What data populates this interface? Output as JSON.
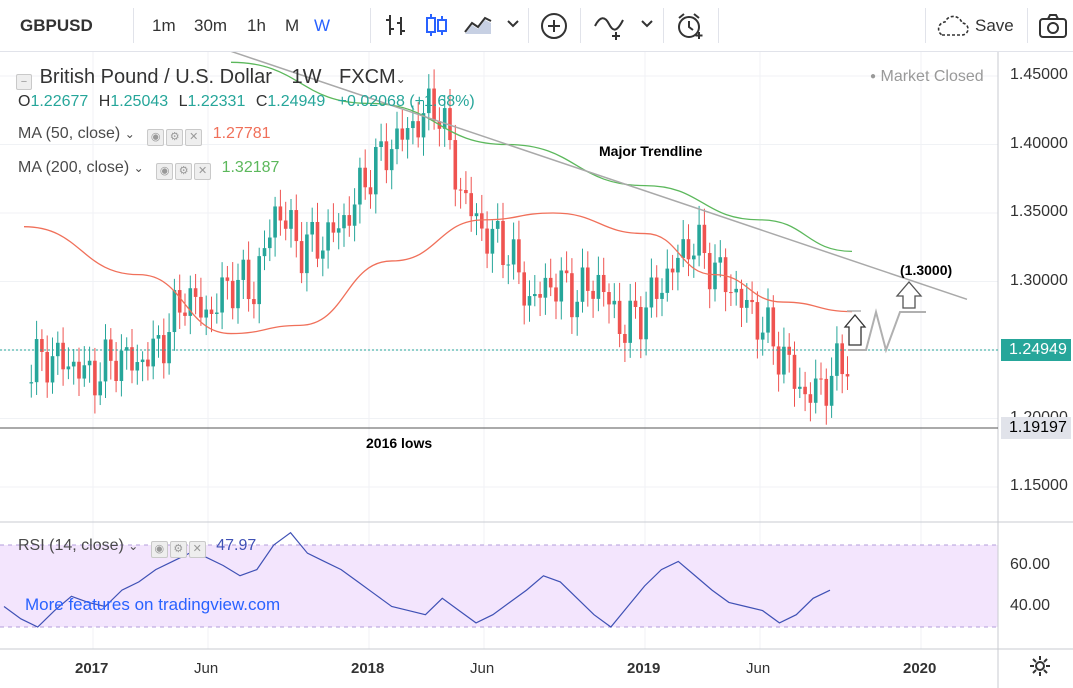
{
  "toolbar": {
    "symbol": "GBPUSD",
    "intervals": [
      "1m",
      "30m",
      "1h",
      "M",
      "W"
    ],
    "save_label": "Save",
    "icons": [
      "bar-style-icon",
      "candles-icon",
      "area-icon",
      "chevron-down-icon",
      "add-compare-icon",
      "indicators-icon",
      "alert-icon",
      "cloud-icon",
      "camera-icon"
    ]
  },
  "legend": {
    "title": "British Pound / U.S. Dollar",
    "interval": "1W",
    "source": "FXCM",
    "open_label": "O",
    "open": "1.22677",
    "high_label": "H",
    "high": "1.25043",
    "low_label": "L",
    "low": "1.22331",
    "close_label": "C",
    "close": "1.24949",
    "change": "+0.02068 (+1.68%)",
    "market_status": "Market Closed",
    "ma50_label": "MA (50, close)",
    "ma50_value": "1.27781",
    "ma200_label": "MA (200, close)",
    "ma200_value": "1.32187",
    "rsi_label": "RSI (14, close)",
    "rsi_value": "47.97",
    "promo": "More features on tradingview.com"
  },
  "annotations": {
    "trendline": "Major Trendline",
    "lows": "2016 lows",
    "target": "(1.3000)"
  },
  "colors": {
    "up": "#26a69a",
    "down": "#ef5350",
    "ma50": "#f0705a",
    "ma200": "#5cb85c",
    "rsi": "#3f51b5",
    "rsi_band": "#f3e5fd",
    "last_price": "#26a69a",
    "lows_tag": "#e1e3ea"
  },
  "chart_data": [
    {
      "type": "candlestick",
      "symbol": "GBPUSD",
      "interval": "1W",
      "x_ticks": [
        "2017",
        "Jun",
        "2018",
        "Jun",
        "2019",
        "Jun",
        "2020"
      ],
      "y_ticks": [
        "1.45000",
        "1.40000",
        "1.35000",
        "1.30000",
        "1.25000",
        "1.20000",
        "1.15000"
      ],
      "ylim": [
        1.13,
        1.47
      ],
      "last_price": "1.24949",
      "lows_level": "1.19197",
      "close_path": [
        [
          "2016-10",
          1.235
        ],
        [
          "2016-11",
          1.245
        ],
        [
          "2016-12",
          1.24
        ],
        [
          "2017-01",
          1.23
        ],
        [
          "2017-02",
          1.245
        ],
        [
          "2017-03",
          1.24
        ],
        [
          "2017-04",
          1.255
        ],
        [
          "2017-05",
          1.29
        ],
        [
          "2017-06",
          1.275
        ],
        [
          "2017-07",
          1.3
        ],
        [
          "2017-08",
          1.295
        ],
        [
          "2017-09",
          1.355
        ],
        [
          "2017-10",
          1.325
        ],
        [
          "2017-11",
          1.33
        ],
        [
          "2017-12",
          1.345
        ],
        [
          "2018-01",
          1.38
        ],
        [
          "2018-02",
          1.4
        ],
        [
          "2018-03",
          1.415
        ],
        [
          "2018-04",
          1.43
        ],
        [
          "2018-05",
          1.365
        ],
        [
          "2018-06",
          1.335
        ],
        [
          "2018-07",
          1.325
        ],
        [
          "2018-08",
          1.285
        ],
        [
          "2018-09",
          1.3
        ],
        [
          "2018-10",
          1.29
        ],
        [
          "2018-11",
          1.3
        ],
        [
          "2018-12",
          1.265
        ],
        [
          "2019-01",
          1.28
        ],
        [
          "2019-02",
          1.305
        ],
        [
          "2019-03",
          1.33
        ],
        [
          "2019-04",
          1.31
        ],
        [
          "2019-05",
          1.29
        ],
        [
          "2019-06",
          1.27
        ],
        [
          "2019-07",
          1.245
        ],
        [
          "2019-08",
          1.215
        ],
        [
          "2019-09",
          1.228
        ],
        [
          "2019-10",
          1.2495
        ]
      ],
      "ma50": [
        [
          1.34,
          "2016-10"
        ],
        [
          1.305,
          "2017-03"
        ],
        [
          1.262,
          "2017-07"
        ],
        [
          1.268,
          "2017-10"
        ],
        [
          1.315,
          "2018-02"
        ],
        [
          1.345,
          "2018-06"
        ],
        [
          1.35,
          "2018-09"
        ],
        [
          1.335,
          "2019-01"
        ],
        [
          1.305,
          "2019-04"
        ],
        [
          1.285,
          "2019-07"
        ],
        [
          1.278,
          "2019-10"
        ]
      ],
      "ma200": [
        [
          1.46,
          "2017-07"
        ],
        [
          1.43,
          "2018-01"
        ],
        [
          1.4,
          "2018-07"
        ],
        [
          1.37,
          "2019-01"
        ],
        [
          1.345,
          "2019-06"
        ],
        [
          1.322,
          "2019-10"
        ]
      ],
      "trendline": [
        [
          "2017-07",
          1.468
        ],
        [
          "2020-03",
          1.287
        ]
      ]
    },
    {
      "type": "line",
      "name": "RSI (14, close)",
      "y_ticks": [
        "60.00",
        "40.00"
      ],
      "band": [
        30,
        70
      ],
      "values": [
        40,
        34,
        30,
        38,
        45,
        42,
        40,
        48,
        52,
        58,
        62,
        66,
        64,
        60,
        55,
        58,
        70,
        76,
        66,
        62,
        58,
        52,
        46,
        40,
        38,
        36,
        44,
        38,
        32,
        36,
        42,
        48,
        55,
        52,
        44,
        36,
        30,
        40,
        50,
        58,
        62,
        55,
        48,
        42,
        40,
        38,
        32,
        36,
        44,
        47.97
      ]
    }
  ]
}
